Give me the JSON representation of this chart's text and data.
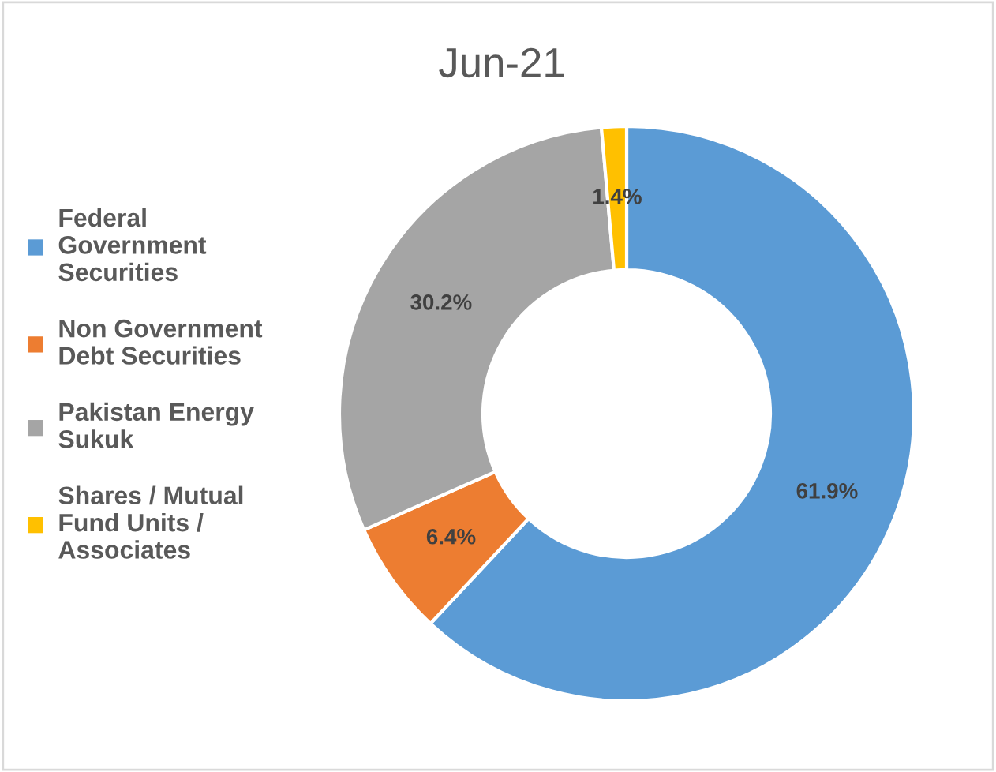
{
  "chart_data": {
    "type": "donut",
    "title": "Jun-21",
    "categories": [
      "Federal\nGovernment\nSecurities",
      "Non Government\nDebt Securities",
      "Pakistan Energy\nSukuk",
      "Shares / Mutual\nFund Units /\nAssociates"
    ],
    "values": [
      61.9,
      6.4,
      30.2,
      1.4
    ],
    "colors": [
      "#5b9bd5",
      "#ed7d31",
      "#a5a5a5",
      "#ffc000"
    ],
    "value_labels": [
      "61.9%",
      "6.4%",
      "30.2%",
      "1.4%"
    ],
    "legend": "left"
  }
}
